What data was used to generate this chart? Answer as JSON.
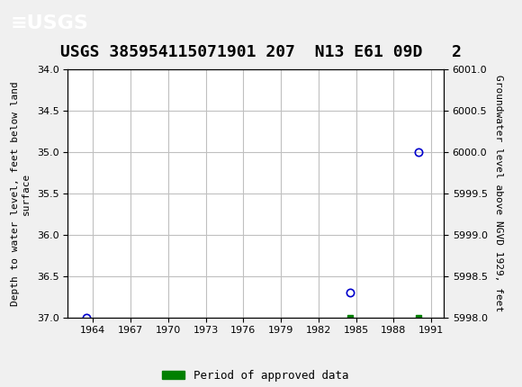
{
  "title": "USGS 385954115071901 207  N13 E61 09D   2",
  "title_fontsize": 13,
  "background_color": "#f0f0f0",
  "header_color": "#1a6b3a",
  "plot_bg_color": "#ffffff",
  "grid_color": "#c0c0c0",
  "ylabel_left": "Depth to water level, feet below land\nsurface",
  "ylabel_right": "Groundwater level above NGVD 1929, feet",
  "xlim": [
    1962,
    1992
  ],
  "ylim_left": [
    34.0,
    37.0
  ],
  "ylim_right": [
    5998.0,
    6001.0
  ],
  "xticks": [
    1964,
    1967,
    1970,
    1973,
    1976,
    1979,
    1982,
    1985,
    1988,
    1991
  ],
  "yticks_left": [
    34.0,
    34.5,
    35.0,
    35.5,
    36.0,
    36.5,
    37.0
  ],
  "yticks_right": [
    5998.0,
    5998.5,
    5999.0,
    5999.5,
    6000.0,
    6000.5,
    6001.0
  ],
  "data_points": [
    {
      "year": 1963.5,
      "depth": 37.0
    },
    {
      "year": 1984.5,
      "depth": 36.7
    },
    {
      "year": 1990.0,
      "depth": 35.0
    }
  ],
  "approved_bars": [
    {
      "year": 1984.5,
      "depth": 37.0
    },
    {
      "year": 1990.0,
      "depth": 37.0
    }
  ],
  "point_color": "#0000cc",
  "approved_color": "#008000",
  "font_family": "monospace",
  "legend_label": "Period of approved data"
}
